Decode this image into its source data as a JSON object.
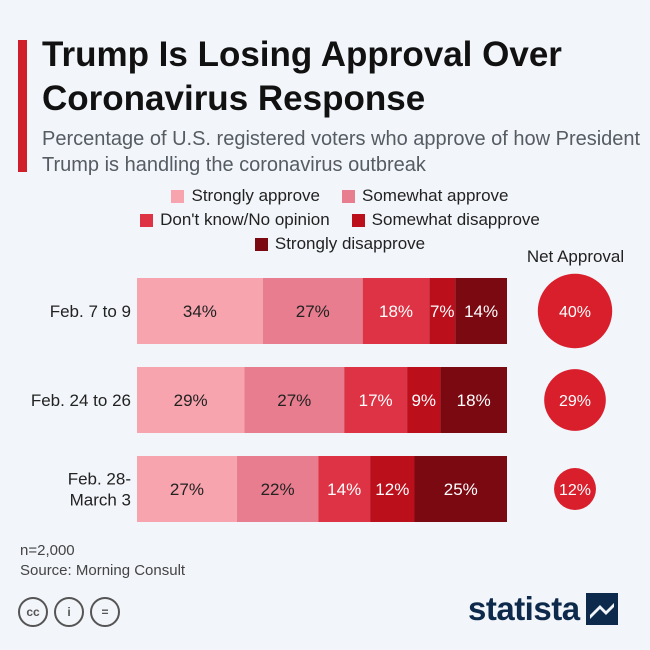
{
  "header": {
    "title": "Trump Is Losing Approval Over Coronavirus Response",
    "subtitle": "Percentage of U.S. registered voters who approve of how President Trump is handling the coronavirus outbreak"
  },
  "colors": {
    "accent": "#d01f2a",
    "strongly_approve": "#f7a4ae",
    "somewhat_approve": "#e87d8f",
    "dont_know": "#dd3344",
    "somewhat_disapprove": "#bb0f1c",
    "strongly_disapprove": "#7a0911",
    "net_circle": "#d91f2c"
  },
  "net_approval_label": "Net Approval",
  "chart_data": {
    "type": "bar",
    "orientation": "horizontal",
    "stacked": true,
    "categories": [
      "Feb. 7 to 9",
      "Feb. 24 to 26",
      "Feb. 28-\nMarch 3"
    ],
    "series": [
      {
        "name": "Strongly approve",
        "values": [
          34,
          29,
          27
        ]
      },
      {
        "name": "Somewhat approve",
        "values": [
          27,
          27,
          22
        ]
      },
      {
        "name": "Don't know/No opinion",
        "values": [
          18,
          17,
          14
        ]
      },
      {
        "name": "Somewhat disapprove",
        "values": [
          7,
          9,
          12
        ]
      },
      {
        "name": "Strongly disapprove",
        "values": [
          14,
          18,
          25
        ]
      }
    ],
    "value_suffix": "%",
    "net_approval": [
      40,
      29,
      12
    ],
    "legend_position": "top"
  },
  "footer": {
    "sample": "n=2,000",
    "source": "Source: Morning Consult"
  },
  "brand": {
    "name": "statista",
    "license_icons": [
      "cc-icon",
      "attribution-icon",
      "no-derivatives-icon"
    ],
    "license_glyphs": [
      "cc",
      "i",
      "="
    ]
  }
}
